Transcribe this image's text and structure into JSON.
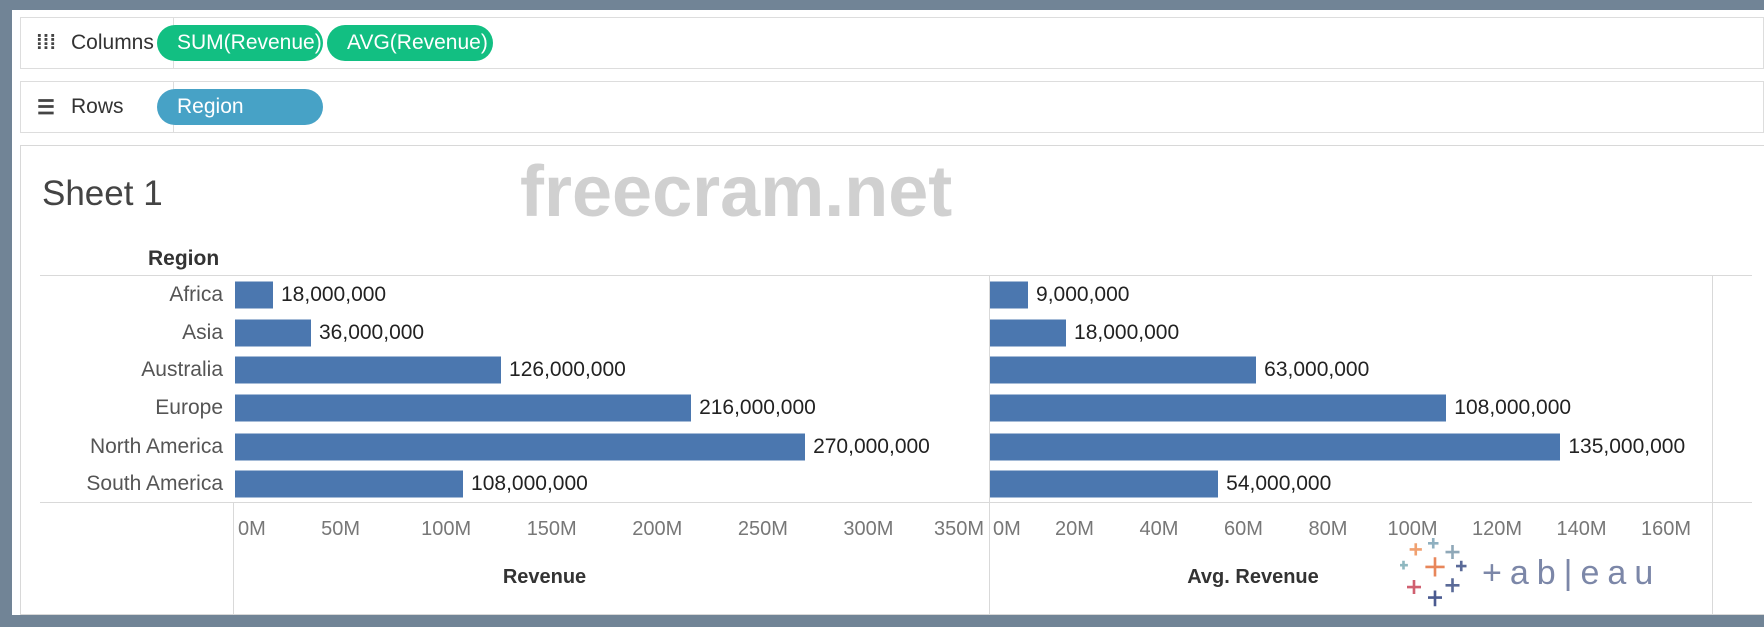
{
  "shelves": {
    "columns": {
      "label": "Columns",
      "icon": "columns-icon",
      "pills": [
        "SUM(Revenue)",
        "AVG(Revenue)"
      ]
    },
    "rows": {
      "label": "Rows",
      "icon": "rows-list-icon",
      "pills": [
        "Region"
      ]
    }
  },
  "colors": {
    "measure_pill": "#12bf82",
    "dimension_pill": "#47a2c6",
    "bar": "#4b77af"
  },
  "sheet": {
    "title": "Sheet 1"
  },
  "watermark": "freecram.net",
  "logo": "tableau",
  "chart_data": [
    {
      "type": "bar",
      "orientation": "horizontal",
      "row_header": "Region",
      "categories": [
        "Africa",
        "Asia",
        "Australia",
        "Europe",
        "North America",
        "South America"
      ],
      "values": [
        18000000,
        36000000,
        126000000,
        216000000,
        270000000,
        108000000
      ],
      "value_labels": [
        "18,000,000",
        "36,000,000",
        "126,000,000",
        "216,000,000",
        "270,000,000",
        "108,000,000"
      ],
      "xlabel": "Revenue",
      "xlim": [
        0,
        350000000
      ],
      "ticks": [
        "0M",
        "50M",
        "100M",
        "150M",
        "200M",
        "250M",
        "300M",
        "350M"
      ]
    },
    {
      "type": "bar",
      "orientation": "horizontal",
      "categories": [
        "Africa",
        "Asia",
        "Australia",
        "Europe",
        "North America",
        "South America"
      ],
      "values": [
        9000000,
        18000000,
        63000000,
        108000000,
        135000000,
        54000000
      ],
      "value_labels": [
        "9,000,000",
        "18,000,000",
        "63,000,000",
        "108,000,000",
        "135,000,000",
        "54,000,000"
      ],
      "xlabel": "Avg. Revenue",
      "xlim": [
        0,
        160000000
      ],
      "ticks": [
        "0M",
        "20M",
        "40M",
        "60M",
        "80M",
        "100M",
        "120M",
        "140M",
        "160M"
      ]
    }
  ]
}
